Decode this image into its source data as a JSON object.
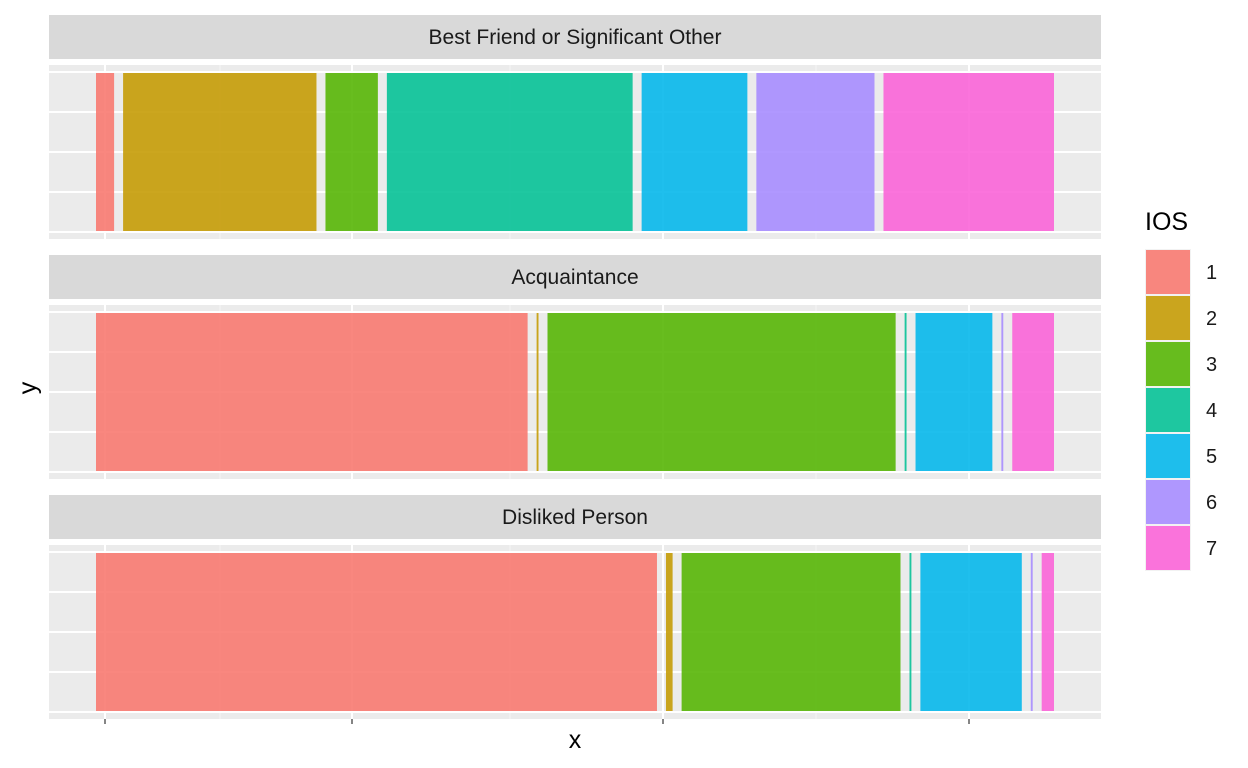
{
  "chart_data": {
    "type": "bar",
    "subtype": "proportional-width-stacked (mosaic), faceted by relationship",
    "xlabel": "x",
    "ylabel": "y",
    "x_tick_labels_shown": false,
    "y_tick_labels_shown": false,
    "grid": true,
    "legend": {
      "title": "IOS",
      "position": "right",
      "entries": [
        {
          "label": "1",
          "color": "#F8766D"
        },
        {
          "label": "2",
          "color": "#C49A00"
        },
        {
          "label": "3",
          "color": "#53B400"
        },
        {
          "label": "4",
          "color": "#00C094"
        },
        {
          "label": "5",
          "color": "#00B6EB"
        },
        {
          "label": "6",
          "color": "#A58AFF"
        },
        {
          "label": "7",
          "color": "#FB61D7"
        }
      ]
    },
    "facets": [
      {
        "label": "Best Friend or Significant Other",
        "series": [
          {
            "name": "1",
            "share": 0.019
          },
          {
            "name": "2",
            "share": 0.203
          },
          {
            "name": "3",
            "share": 0.055
          },
          {
            "name": "4",
            "share": 0.258
          },
          {
            "name": "5",
            "share": 0.111
          },
          {
            "name": "6",
            "share": 0.124
          },
          {
            "name": "7",
            "share": 0.179
          }
        ]
      },
      {
        "label": "Acquaintance",
        "series": [
          {
            "name": "1",
            "share": 0.455
          },
          {
            "name": "2",
            "share": 0.002
          },
          {
            "name": "3",
            "share": 0.367
          },
          {
            "name": "4",
            "share": 0.002
          },
          {
            "name": "5",
            "share": 0.081
          },
          {
            "name": "6",
            "share": 0.002
          },
          {
            "name": "7",
            "share": 0.044
          }
        ]
      },
      {
        "label": "Disliked Person",
        "series": [
          {
            "name": "1",
            "share": 0.592
          },
          {
            "name": "2",
            "share": 0.007
          },
          {
            "name": "3",
            "share": 0.231
          },
          {
            "name": "4",
            "share": 0.002
          },
          {
            "name": "5",
            "share": 0.107
          },
          {
            "name": "6",
            "share": 0.002
          },
          {
            "name": "7",
            "share": 0.013
          }
        ]
      }
    ]
  }
}
